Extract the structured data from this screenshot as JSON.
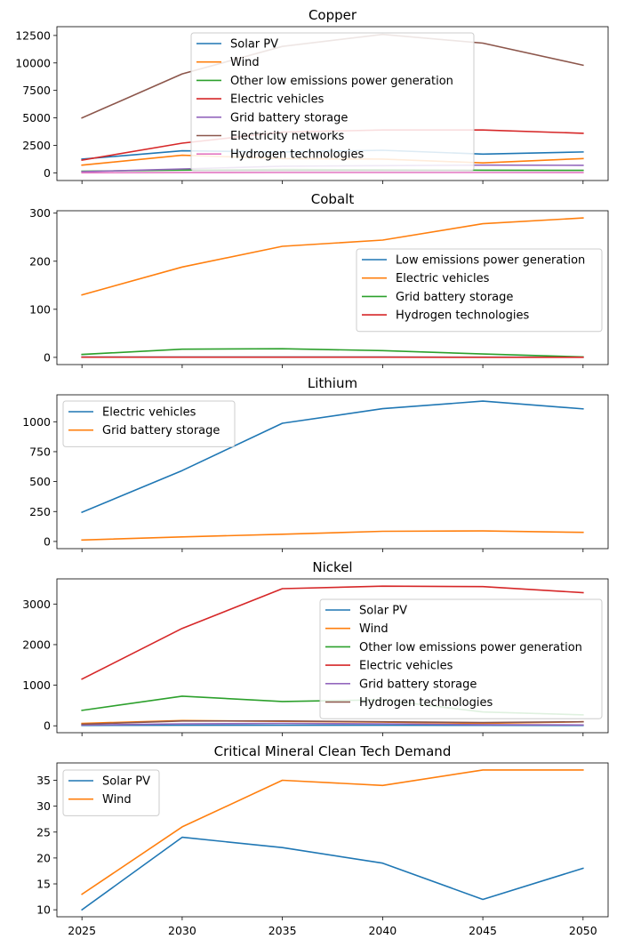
{
  "palette": [
    "#1f77b4",
    "#ff7f0e",
    "#2ca02c",
    "#d62728",
    "#9467bd",
    "#8c564b",
    "#e377c2"
  ],
  "x_ticks": [
    "2025",
    "2030",
    "2035",
    "2040",
    "2045",
    "2050"
  ],
  "chart_data": [
    {
      "type": "line",
      "title": "Copper",
      "x": [
        2025,
        2030,
        2035,
        2040,
        2045,
        2050
      ],
      "ylim": [
        -700,
        13300
      ],
      "yticks": [
        0,
        2500,
        5000,
        7500,
        10000,
        12500
      ],
      "legend_position": "upper center",
      "series": [
        {
          "name": "Solar PV",
          "values": [
            1250,
            2000,
            1900,
            2050,
            1700,
            1900
          ]
        },
        {
          "name": "Wind",
          "values": [
            700,
            1600,
            1300,
            1250,
            900,
            1300
          ]
        },
        {
          "name": "Other low emissions power generation",
          "values": [
            150,
            250,
            300,
            280,
            240,
            220
          ]
        },
        {
          "name": "Electric vehicles",
          "values": [
            1150,
            2700,
            3700,
            3900,
            3900,
            3600
          ]
        },
        {
          "name": "Grid battery storage",
          "values": [
            100,
            350,
            600,
            650,
            700,
            680
          ]
        },
        {
          "name": "Electricity networks",
          "values": [
            5000,
            9000,
            11500,
            12600,
            11800,
            9800
          ]
        },
        {
          "name": "Hydrogen technologies",
          "values": [
            5,
            20,
            30,
            30,
            25,
            20
          ]
        }
      ]
    },
    {
      "type": "line",
      "title": "Cobalt",
      "x": [
        2025,
        2030,
        2035,
        2040,
        2045,
        2050
      ],
      "ylim": [
        -15,
        305
      ],
      "yticks": [
        0,
        100,
        200,
        300
      ],
      "legend_position": "center right",
      "series": [
        {
          "name": "Low emissions power generation",
          "values": [
            0.5,
            0.6,
            0.6,
            0.5,
            0.4,
            0.3
          ]
        },
        {
          "name": "Electric vehicles",
          "values": [
            130,
            188,
            231,
            244,
            278,
            290
          ]
        },
        {
          "name": "Grid battery storage",
          "values": [
            6,
            17,
            18,
            14,
            7,
            1
          ]
        },
        {
          "name": "Hydrogen technologies",
          "values": [
            0.3,
            0.4,
            0.4,
            0.3,
            0.2,
            0.1
          ]
        }
      ]
    },
    {
      "type": "line",
      "title": "Lithium",
      "x": [
        2025,
        2030,
        2035,
        2040,
        2045,
        2050
      ],
      "ylim": [
        -60,
        1225
      ],
      "yticks": [
        0,
        250,
        500,
        750,
        1000
      ],
      "legend_position": "upper left",
      "series": [
        {
          "name": "Electric vehicles",
          "values": [
            244,
            592,
            987,
            1109,
            1172,
            1108
          ]
        },
        {
          "name": "Grid battery storage",
          "values": [
            12,
            38,
            60,
            85,
            88,
            76
          ]
        }
      ]
    },
    {
      "type": "line",
      "title": "Nickel",
      "x": [
        2025,
        2030,
        2035,
        2040,
        2045,
        2050
      ],
      "ylim": [
        -170,
        3620
      ],
      "yticks": [
        0,
        1000,
        2000,
        3000
      ],
      "legend_position": "center right",
      "series": [
        {
          "name": "Solar PV",
          "values": [
            10,
            15,
            15,
            15,
            12,
            10
          ]
        },
        {
          "name": "Wind",
          "values": [
            60,
            130,
            110,
            90,
            60,
            100
          ]
        },
        {
          "name": "Other low emissions power generation",
          "values": [
            380,
            730,
            600,
            640,
            340,
            270
          ]
        },
        {
          "name": "Electric vehicles",
          "values": [
            1150,
            2400,
            3380,
            3440,
            3430,
            3280
          ]
        },
        {
          "name": "Grid battery storage",
          "values": [
            20,
            50,
            60,
            50,
            30,
            20
          ]
        },
        {
          "name": "Hydrogen technologies",
          "values": [
            40,
            120,
            120,
            100,
            80,
            100
          ]
        }
      ]
    },
    {
      "type": "line",
      "title": "Critical Mineral Clean Tech Demand",
      "x": [
        2025,
        2030,
        2035,
        2040,
        2045,
        2050
      ],
      "ylim": [
        8.65,
        38.35
      ],
      "yticks": [
        10,
        15,
        20,
        25,
        30,
        35
      ],
      "legend_position": "upper left",
      "series": [
        {
          "name": "Solar PV",
          "values": [
            10,
            24,
            22,
            19,
            12,
            18
          ]
        },
        {
          "name": "Wind",
          "values": [
            13,
            26,
            35,
            34,
            37,
            37
          ]
        }
      ]
    }
  ]
}
